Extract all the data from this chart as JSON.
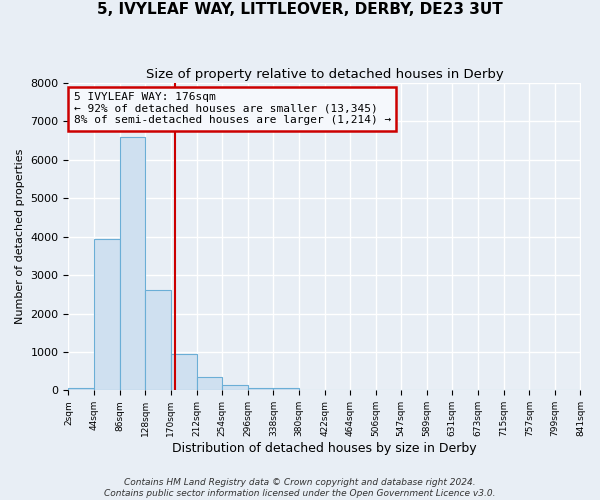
{
  "title": "5, IVYLEAF WAY, LITTLEOVER, DERBY, DE23 3UT",
  "subtitle": "Size of property relative to detached houses in Derby",
  "xlabel": "Distribution of detached houses by size in Derby",
  "ylabel": "Number of detached properties",
  "bin_edges": [
    2,
    44,
    86,
    128,
    170,
    212,
    254,
    296,
    338,
    380,
    422,
    464,
    506,
    547,
    589,
    631,
    673,
    715,
    757,
    799,
    841
  ],
  "bar_heights": [
    70,
    3950,
    6600,
    2600,
    950,
    340,
    130,
    50,
    50,
    0,
    0,
    0,
    0,
    0,
    0,
    0,
    0,
    0,
    0,
    0
  ],
  "bar_color": "#cfe0f0",
  "bar_edge_color": "#6baed6",
  "property_line_x": 176,
  "property_line_color": "#cc0000",
  "annotation_text": "5 IVYLEAF WAY: 176sqm\n← 92% of detached houses are smaller (13,345)\n8% of semi-detached houses are larger (1,214) →",
  "annotation_box_color": "#cc0000",
  "annotation_box_fill": "#f5f8fc",
  "ylim": [
    0,
    8000
  ],
  "yticks": [
    0,
    1000,
    2000,
    3000,
    4000,
    5000,
    6000,
    7000,
    8000
  ],
  "xtick_labels": [
    "2sqm",
    "44sqm",
    "86sqm",
    "128sqm",
    "170sqm",
    "212sqm",
    "254sqm",
    "296sqm",
    "338sqm",
    "380sqm",
    "422sqm",
    "464sqm",
    "506sqm",
    "547sqm",
    "589sqm",
    "631sqm",
    "673sqm",
    "715sqm",
    "757sqm",
    "799sqm",
    "841sqm"
  ],
  "footer_line1": "Contains HM Land Registry data © Crown copyright and database right 2024.",
  "footer_line2": "Contains public sector information licensed under the Open Government Licence v3.0.",
  "background_color": "#e8eef5",
  "grid_color": "#ffffff",
  "title_fontsize": 11,
  "subtitle_fontsize": 9.5,
  "annotation_fontsize": 8,
  "footer_fontsize": 6.5
}
